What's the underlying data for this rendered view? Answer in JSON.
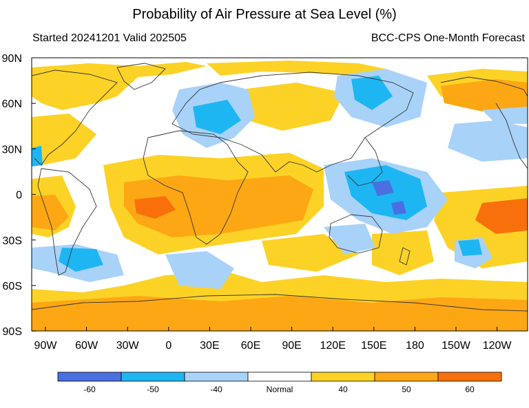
{
  "title": "Probability of Air Pressure at Sea Level (%)",
  "subtitle_left": "Started 20241201  Valid 202505",
  "subtitle_right": "BCC-CPS One-Month Forecast",
  "lat_labels": [
    "90N",
    "60N",
    "30N",
    "0",
    "30S",
    "60S",
    "90S"
  ],
  "lon_labels": [
    "90W",
    "60W",
    "30W",
    "0",
    "30E",
    "60E",
    "90E",
    "120E",
    "150E",
    "180",
    "150W",
    "120W"
  ],
  "legend": [
    {
      "label": "-60",
      "color": "#4a6fe0"
    },
    {
      "label": "-50",
      "color": "#1eb6f2"
    },
    {
      "label": "-40",
      "color": "#a8d2f8"
    },
    {
      "label": "Normal",
      "color": "#ffffff"
    },
    {
      "label": "40",
      "color": "#fcd226"
    },
    {
      "label": "50",
      "color": "#fda714"
    },
    {
      "label": "60",
      "color": "#f8700c"
    }
  ]
}
